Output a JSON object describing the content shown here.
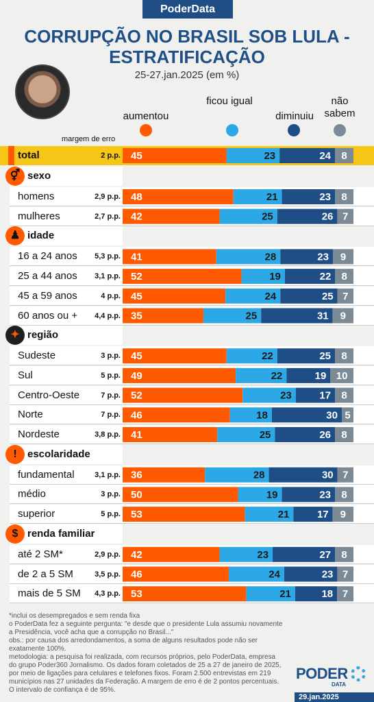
{
  "header": {
    "brand": "PoderData",
    "title_line1": "CORRUPÇÃO NO BRASIL SOB LULA -",
    "title_line2": "ESTRATIFICAÇÃO",
    "subtitle": "25-27.jan.2025 (em %)",
    "margin_heading": "margem de erro"
  },
  "legend": [
    {
      "label": "aumentou",
      "color": "#ff5a00"
    },
    {
      "label": "ficou igual",
      "color": "#2da8e6"
    },
    {
      "label": "diminuiu",
      "color": "#1f4e86"
    },
    {
      "label": "não sabem",
      "color": "#7c8a96"
    }
  ],
  "sections": [
    {
      "label": "sexo",
      "icon": "gender-icon",
      "glyph": "⚥"
    },
    {
      "label": "idade",
      "icon": "person-icon",
      "glyph": "♟"
    },
    {
      "label": "região",
      "icon": "brazil-map-icon",
      "glyph": "✦"
    },
    {
      "label": "escolaridade",
      "icon": "exclamation-icon",
      "glyph": "!"
    },
    {
      "label": "renda familiar",
      "icon": "dollar-icon",
      "glyph": "$"
    }
  ],
  "chart_data": {
    "type": "bar",
    "stacked": true,
    "orientation": "horizontal",
    "series": [
      {
        "name": "aumentou",
        "color": "#ff5a00"
      },
      {
        "name": "ficou igual",
        "color": "#2da8e6"
      },
      {
        "name": "diminuiu",
        "color": "#1f4e86"
      },
      {
        "name": "não sabem",
        "color": "#7c8a96"
      }
    ],
    "rows": [
      {
        "label": "total",
        "moe": "2 p.p.",
        "values": [
          45,
          23,
          24,
          8
        ],
        "section": -1
      },
      {
        "label": "homens",
        "moe": "2,9 p.p.",
        "values": [
          48,
          21,
          23,
          8
        ],
        "section": 0
      },
      {
        "label": "mulheres",
        "moe": "2,7 p.p.",
        "values": [
          42,
          25,
          26,
          7
        ],
        "section": 0
      },
      {
        "label": "16 a 24 anos",
        "moe": "5,3 p.p.",
        "values": [
          41,
          28,
          23,
          9
        ],
        "section": 1
      },
      {
        "label": "25 a 44 anos",
        "moe": "3,1 p.p.",
        "values": [
          52,
          19,
          22,
          8
        ],
        "section": 1
      },
      {
        "label": "45 a 59 anos",
        "moe": "4 p.p.",
        "values": [
          45,
          24,
          25,
          7
        ],
        "section": 1
      },
      {
        "label": "60 anos ou +",
        "moe": "4,4 p.p.",
        "values": [
          35,
          25,
          31,
          9
        ],
        "section": 1
      },
      {
        "label": "Sudeste",
        "moe": "3 p.p.",
        "values": [
          45,
          22,
          25,
          8
        ],
        "section": 2
      },
      {
        "label": "Sul",
        "moe": "5 p.p.",
        "values": [
          49,
          22,
          19,
          10
        ],
        "section": 2
      },
      {
        "label": "Centro-Oeste",
        "moe": "7 p.p.",
        "values": [
          52,
          23,
          17,
          8
        ],
        "section": 2
      },
      {
        "label": "Norte",
        "moe": "7 p.p.",
        "values": [
          46,
          18,
          30,
          5
        ],
        "section": 2
      },
      {
        "label": "Nordeste",
        "moe": "3,8 p.p.",
        "values": [
          41,
          25,
          26,
          8
        ],
        "section": 2
      },
      {
        "label": "fundamental",
        "moe": "3,1 p.p.",
        "values": [
          36,
          28,
          30,
          7
        ],
        "section": 3
      },
      {
        "label": "médio",
        "moe": "3 p.p.",
        "values": [
          50,
          19,
          23,
          8
        ],
        "section": 3
      },
      {
        "label": "superior",
        "moe": "5 p.p.",
        "values": [
          53,
          21,
          17,
          9
        ],
        "section": 3
      },
      {
        "label": "até 2 SM*",
        "moe": "2,9 p.p.",
        "values": [
          42,
          23,
          27,
          8
        ],
        "section": 4
      },
      {
        "label": "de 2 a 5 SM",
        "moe": "3,5 p.p.",
        "values": [
          46,
          24,
          23,
          7
        ],
        "section": 4
      },
      {
        "label": "mais de 5 SM",
        "moe": "4,3 p.p.",
        "values": [
          53,
          21,
          18,
          7
        ],
        "section": 4
      }
    ]
  },
  "notes": {
    "footnote": "*inclui os desempregados e sem renda fixa",
    "question": "o PoderData fez a seguinte pergunta: \"e desde que o presidente Lula assumiu novamente a Presidência, você acha que a corrupção no Brasil...\"",
    "obs": "obs.: por causa dos arredondamentos, a soma de alguns resultados pode não ser exatamente 100%.",
    "methodology": "metodologia: a pesquisa foi realizada, com recursos próprios, pelo PoderData, empresa do grupo Poder360 Jornalismo. Os dados foram coletados de 25 a 27 de janeiro de 2025, por meio de ligações para celulares e telefones fixos. Foram 2.500 entrevistas em 219 municípios nas 27 unidades da Federação. A margem de erro é de 2 pontos percentuais. O intervalo de confiança é de 95%."
  },
  "footer": {
    "logo_word": "PODER",
    "logo_sub": "DATA",
    "date": "29.jan.2025"
  }
}
